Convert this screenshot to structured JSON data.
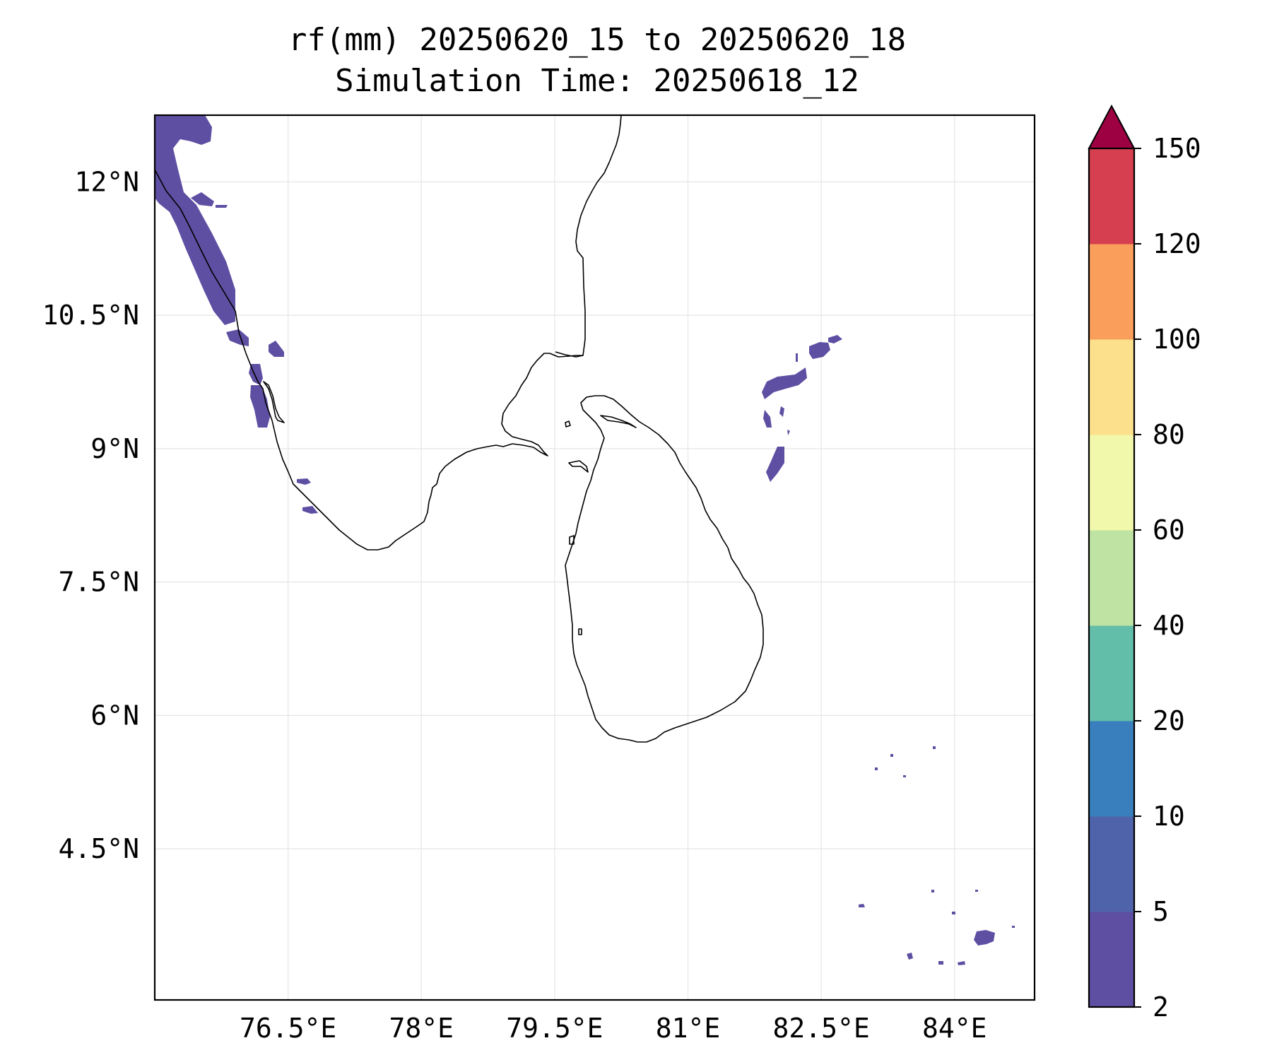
{
  "title": {
    "line1": "rf(mm) 20250620_15 to 20250620_18",
    "line2": "Simulation Time: 20250618_12"
  },
  "map": {
    "lon_range": [
      75.0,
      84.9
    ],
    "lat_range": [
      2.8,
      12.75
    ],
    "gridlines": true,
    "x_ticks": [
      {
        "value": 76.5,
        "label": "76.5°E"
      },
      {
        "value": 78.0,
        "label": "78°E"
      },
      {
        "value": 79.5,
        "label": "79.5°E"
      },
      {
        "value": 81.0,
        "label": "81°E"
      },
      {
        "value": 82.5,
        "label": "82.5°E"
      },
      {
        "value": 84.0,
        "label": "84°E"
      }
    ],
    "y_ticks": [
      {
        "value": 12.0,
        "label": "12°N"
      },
      {
        "value": 10.5,
        "label": "10.5°N"
      },
      {
        "value": 9.0,
        "label": "9°N"
      },
      {
        "value": 7.5,
        "label": "7.5°N"
      },
      {
        "value": 6.0,
        "label": "6°N"
      },
      {
        "value": 4.5,
        "label": "4.5°N"
      }
    ],
    "coastline_color": "#000000",
    "rain_color": "#5e4fa2"
  },
  "colorbar": {
    "extend": "max",
    "levels": [
      {
        "label": "2",
        "color": "#5e4fa2"
      },
      {
        "label": "5",
        "color": "#4f63ab"
      },
      {
        "label": "10",
        "color": "#3a7fbd"
      },
      {
        "label": "20",
        "color": "#62bda9"
      },
      {
        "label": "40",
        "color": "#bee3a2"
      },
      {
        "label": "60",
        "color": "#f2f8ab"
      },
      {
        "label": "80",
        "color": "#fde08b"
      },
      {
        "label": "100",
        "color": "#f99e5b"
      },
      {
        "label": "120",
        "color": "#d63f4f"
      },
      {
        "label": "150",
        "color": "#9e0142"
      }
    ]
  }
}
